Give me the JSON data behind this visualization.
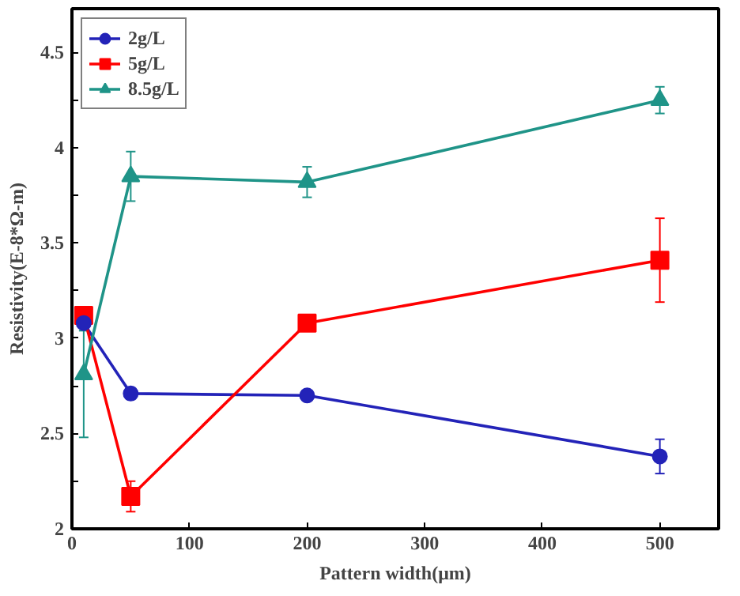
{
  "chart_data": {
    "type": "line",
    "xlabel": "Pattern width(μm)",
    "ylabel": "Resistivity(E-8*Ω-m)",
    "x": [
      10,
      50,
      200,
      500
    ],
    "series": [
      {
        "name": "2g/L",
        "color": "#2323b8",
        "marker": "circle",
        "values": [
          3.08,
          2.71,
          2.7,
          2.38
        ],
        "errors": [
          null,
          0.03,
          null,
          0.09
        ]
      },
      {
        "name": "5g/L",
        "color": "#ff0000",
        "marker": "square",
        "values": [
          3.12,
          2.17,
          3.08,
          3.41
        ],
        "errors": [
          null,
          0.08,
          0.04,
          0.22
        ]
      },
      {
        "name": "8.5g/L",
        "color": "#1f9488",
        "marker": "triangle",
        "values": [
          2.81,
          3.85,
          3.82,
          4.25
        ],
        "errors": [
          [
            2.48,
            3.04
          ],
          0.13,
          0.08,
          0.07
        ]
      }
    ],
    "xlim": [
      0,
      550
    ],
    "xticks": [
      0,
      100,
      200,
      300,
      400,
      500
    ],
    "ylim": [
      2,
      4.73
    ],
    "yticks": [
      2,
      {
        "value": 2.25,
        "label": null
      },
      2.5,
      {
        "value": 2.75,
        "label": null
      },
      3,
      {
        "value": 3.25,
        "label": null
      },
      3.5,
      {
        "value": 3.75,
        "label": null
      },
      4,
      {
        "value": 4.25,
        "label": null
      },
      4.5
    ],
    "grid": false,
    "legend": "top left",
    "line_style": "solid"
  }
}
